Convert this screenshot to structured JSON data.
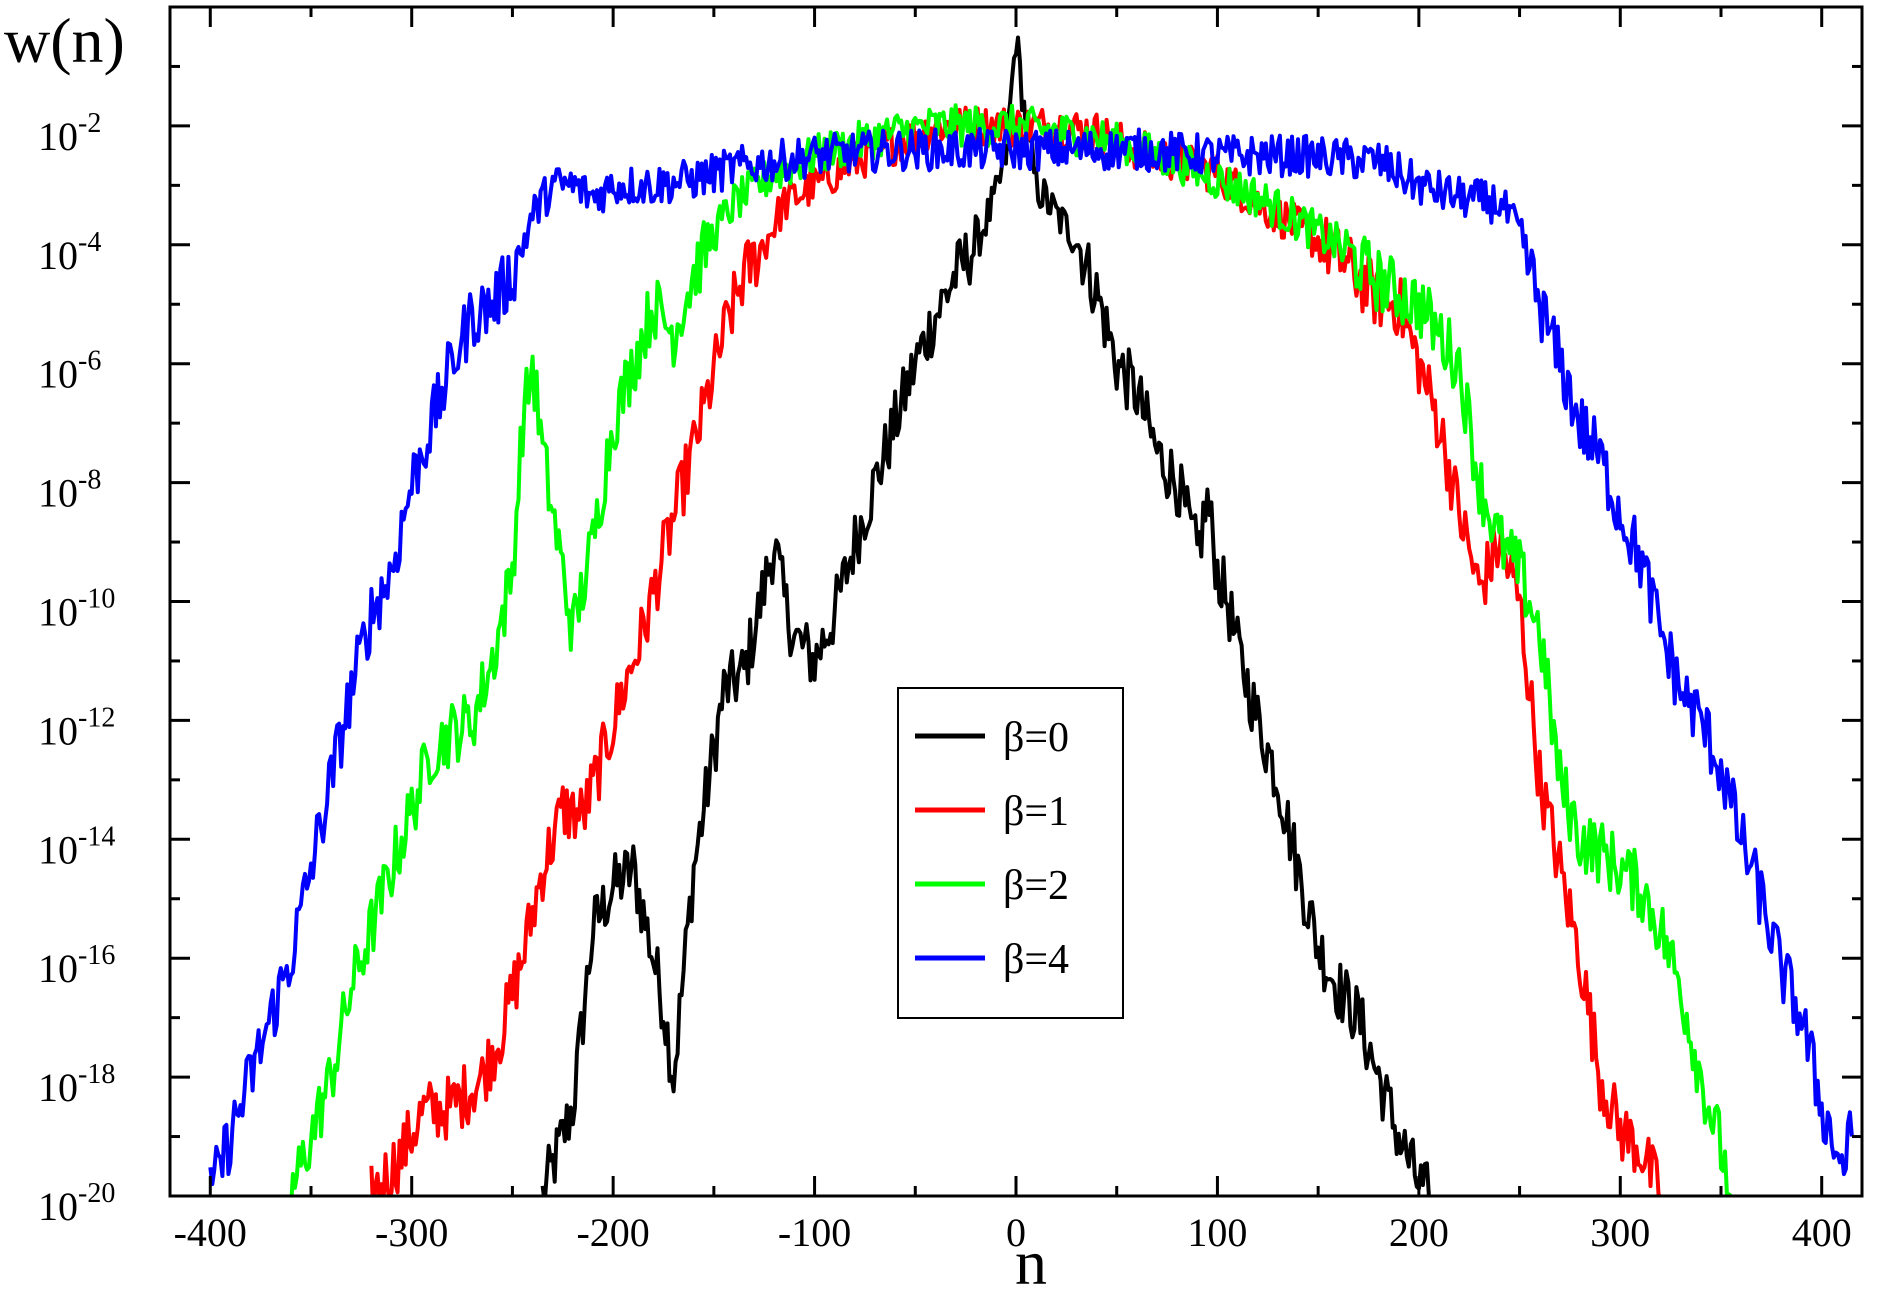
{
  "chart_data": {
    "type": "line",
    "ylabel": "w(n)",
    "xlabel": "n",
    "xlim": [
      -420,
      420
    ],
    "ylim_log10": [
      -20,
      0
    ],
    "yscale": "log",
    "grid": false,
    "legend_position": "center",
    "x_tick_labels": [
      "-400",
      "-300",
      "-200",
      "-100",
      "0",
      "100",
      "200",
      "300",
      "400"
    ],
    "y_tick_labels": [
      {
        "base": "10",
        "exp": "-2"
      },
      {
        "base": "10",
        "exp": "-4"
      },
      {
        "base": "10",
        "exp": "-6"
      },
      {
        "base": "10",
        "exp": "-8"
      },
      {
        "base": "10",
        "exp": "-10"
      },
      {
        "base": "10",
        "exp": "-12"
      },
      {
        "base": "10",
        "exp": "-14"
      },
      {
        "base": "10",
        "exp": "-16"
      },
      {
        "base": "10",
        "exp": "-18"
      },
      {
        "base": "10",
        "exp": "-20"
      }
    ],
    "series": [
      {
        "name": "β=0",
        "color": "#000000",
        "x": [
          -235,
          -220,
          -210,
          -200,
          -190,
          -180,
          -175,
          -170,
          -160,
          -150,
          -145,
          -135,
          -130,
          -120,
          -115,
          -110,
          -100,
          -90,
          -80,
          -70,
          -60,
          -50,
          -40,
          -30,
          -20,
          -10,
          -5,
          0,
          5,
          10,
          20,
          30,
          40,
          50,
          60,
          70,
          80,
          90,
          95,
          100,
          105,
          110,
          120,
          130,
          140,
          150,
          160,
          170,
          180,
          190,
          200,
          205
        ],
        "log10_y": [
          -20.0,
          -18.5,
          -15.5,
          -14.8,
          -14.5,
          -16.0,
          -16.8,
          -18.0,
          -14.5,
          -12.5,
          -11.5,
          -11.2,
          -10.5,
          -9.0,
          -10.0,
          -10.6,
          -11.0,
          -10.2,
          -9.0,
          -8.0,
          -7.0,
          -6.0,
          -5.2,
          -4.5,
          -4.0,
          -3.2,
          -2.5,
          -0.5,
          -2.0,
          -3.0,
          -3.5,
          -3.9,
          -4.8,
          -6.0,
          -6.5,
          -7.5,
          -8.0,
          -9.2,
          -8.3,
          -9.5,
          -10.0,
          -10.8,
          -12.0,
          -13.0,
          -14.5,
          -15.8,
          -16.5,
          -17.0,
          -18.0,
          -19.0,
          -19.8,
          -20.0
        ]
      },
      {
        "name": "β=1",
        "color": "#ff0000",
        "x": [
          -320,
          -305,
          -295,
          -280,
          -265,
          -255,
          -245,
          -235,
          -225,
          -215,
          -205,
          -195,
          -185,
          -175,
          -165,
          -155,
          -145,
          -135,
          -125,
          -115,
          -100,
          -80,
          -60,
          -40,
          -20,
          0,
          20,
          40,
          60,
          80,
          100,
          120,
          140,
          160,
          180,
          190,
          200,
          210,
          220,
          230,
          240,
          250,
          260,
          270,
          280,
          290,
          300,
          310,
          320
        ],
        "log10_y": [
          -20.0,
          -19.3,
          -18.6,
          -18.5,
          -18.0,
          -17.2,
          -16.0,
          -14.5,
          -13.5,
          -13.6,
          -12.6,
          -11.5,
          -10.5,
          -9.2,
          -8.0,
          -6.8,
          -5.5,
          -4.5,
          -4.0,
          -3.3,
          -3.0,
          -2.6,
          -2.3,
          -2.0,
          -2.0,
          -2.0,
          -2.0,
          -2.1,
          -2.4,
          -2.6,
          -2.8,
          -3.3,
          -3.7,
          -4.2,
          -4.9,
          -5.0,
          -6.0,
          -7.0,
          -8.5,
          -9.8,
          -9.0,
          -10.0,
          -13.0,
          -14.5,
          -16.0,
          -18.0,
          -18.9,
          -19.2,
          -20.0
        ]
      },
      {
        "name": "β=2",
        "color": "#00ff00",
        "x": [
          -360,
          -350,
          -340,
          -330,
          -320,
          -310,
          -300,
          -290,
          -280,
          -270,
          -260,
          -250,
          -245,
          -240,
          -235,
          -230,
          -225,
          -220,
          -210,
          -200,
          -190,
          -180,
          -170,
          -160,
          -150,
          -140,
          -120,
          -100,
          -80,
          -60,
          -40,
          -20,
          0,
          20,
          40,
          60,
          80,
          100,
          120,
          140,
          160,
          180,
          200,
          220,
          230,
          240,
          250,
          260,
          270,
          280,
          290,
          300,
          310,
          320,
          330,
          340,
          350,
          355
        ],
        "log10_y": [
          -20.0,
          -19.0,
          -18.0,
          -16.5,
          -15.5,
          -14.5,
          -13.5,
          -12.5,
          -12.2,
          -12.0,
          -11.0,
          -9.5,
          -7.0,
          -6.0,
          -7.5,
          -8.5,
          -9.5,
          -10.5,
          -9.0,
          -7.0,
          -6.0,
          -5.0,
          -5.5,
          -4.5,
          -3.8,
          -3.3,
          -2.8,
          -2.5,
          -2.3,
          -2.1,
          -2.0,
          -2.0,
          -2.0,
          -2.1,
          -2.2,
          -2.4,
          -2.6,
          -2.9,
          -3.2,
          -3.6,
          -4.0,
          -4.6,
          -5.0,
          -6.0,
          -8.0,
          -9.0,
          -9.5,
          -10.5,
          -13.0,
          -14.0,
          -14.2,
          -14.5,
          -14.8,
          -15.5,
          -16.5,
          -18.0,
          -19.2,
          -20.0
        ]
      },
      {
        "name": "β=4",
        "color": "#0000ff",
        "x": [
          -400,
          -390,
          -380,
          -370,
          -360,
          -350,
          -340,
          -330,
          -320,
          -310,
          -300,
          -290,
          -280,
          -270,
          -260,
          -250,
          -240,
          -230,
          -220,
          -210,
          -200,
          -180,
          -160,
          -140,
          -120,
          -100,
          -60,
          -20,
          0,
          20,
          60,
          100,
          140,
          180,
          200,
          220,
          240,
          250,
          260,
          270,
          280,
          290,
          300,
          310,
          320,
          330,
          340,
          350,
          360,
          370,
          380,
          390,
          400,
          410,
          415
        ],
        "log10_y": [
          -20.0,
          -19.0,
          -18.0,
          -17.0,
          -16.0,
          -14.5,
          -13.0,
          -11.5,
          -10.2,
          -9.5,
          -8.0,
          -7.0,
          -6.0,
          -5.2,
          -5.0,
          -4.5,
          -3.5,
          -3.0,
          -3.0,
          -3.2,
          -3.0,
          -3.0,
          -2.9,
          -2.7,
          -2.6,
          -2.5,
          -2.4,
          -2.4,
          -2.4,
          -2.4,
          -2.4,
          -2.5,
          -2.5,
          -2.6,
          -3.0,
          -3.2,
          -3.3,
          -3.8,
          -5.0,
          -6.0,
          -7.0,
          -7.6,
          -8.5,
          -9.3,
          -10.5,
          -11.5,
          -12.0,
          -12.8,
          -14.0,
          -15.0,
          -16.2,
          -17.0,
          -18.5,
          -19.5,
          -19.0
        ]
      }
    ]
  }
}
